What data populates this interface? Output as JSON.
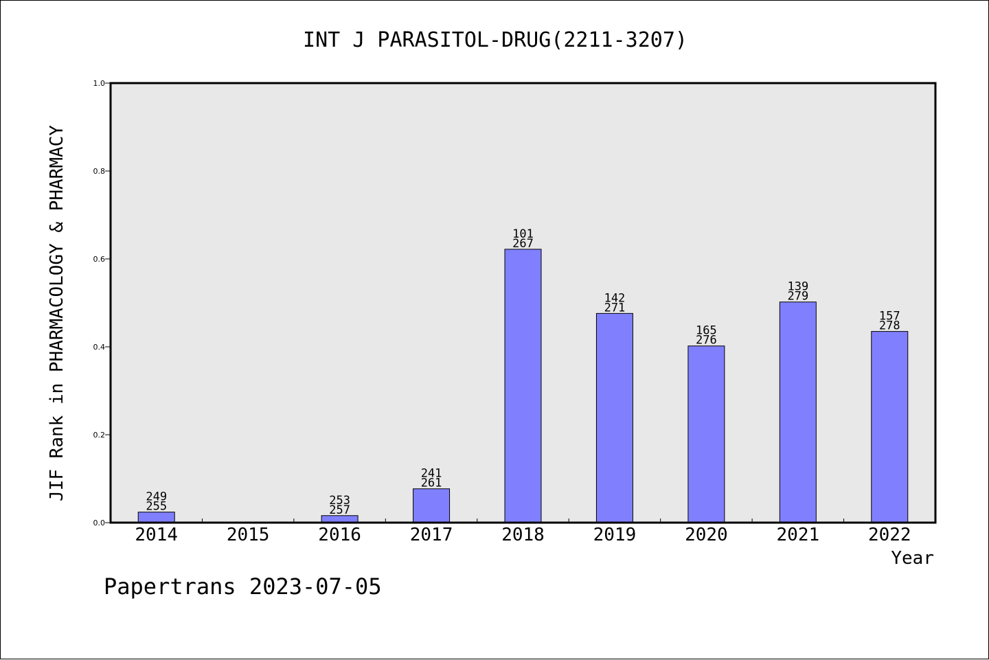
{
  "chart_data": {
    "type": "bar",
    "title": "INT J PARASITOL-DRUG(2211-3207)",
    "ylabel": "JIF Rank in PHARMACOLOGY & PHARMACY",
    "xlabel": "Year",
    "ylim": [
      0,
      1.0
    ],
    "yticks": [
      "0.0",
      "0.2",
      "0.4",
      "0.6",
      "0.8",
      "1.0"
    ],
    "categories": [
      "2014",
      "2015",
      "2016",
      "2017",
      "2018",
      "2019",
      "2020",
      "2021",
      "2022"
    ],
    "values": [
      0.024,
      null,
      0.016,
      0.077,
      0.622,
      0.476,
      0.402,
      0.502,
      0.435
    ],
    "labels": [
      [
        "249",
        "255"
      ],
      null,
      [
        "253",
        "257"
      ],
      [
        "241",
        "261"
      ],
      [
        "101",
        "267"
      ],
      [
        "142",
        "271"
      ],
      [
        "165",
        "276"
      ],
      [
        "139",
        "279"
      ],
      [
        "157",
        "278"
      ]
    ],
    "bar_color": "#8080ff",
    "plot_background": "#e8e8e8",
    "grid": false
  },
  "footer": {
    "source": "Papertrans 2023-07-05"
  }
}
